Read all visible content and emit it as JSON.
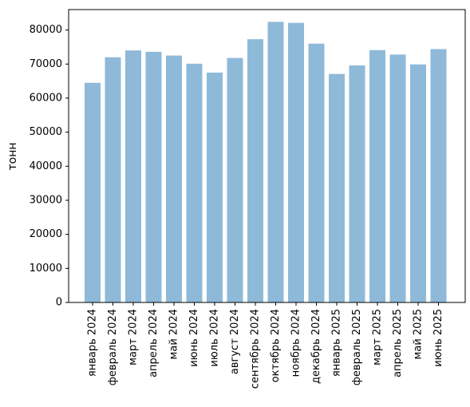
{
  "chart_data": {
    "type": "bar",
    "categories": [
      "январь 2024",
      "февраль 2024",
      "март 2024",
      "апрель 2024",
      "май 2024",
      "июнь 2024",
      "июль 2024",
      "август 2024",
      "сентябрь 2024",
      "октябрь 2024",
      "ноябрь 2024",
      "декабрь 2024",
      "январь 2025",
      "февраль 2025",
      "март 2025",
      "апрель 2025",
      "май 2025",
      "июнь 2025"
    ],
    "values": [
      64500,
      72000,
      74000,
      73600,
      72500,
      70100,
      67500,
      71800,
      77300,
      82400,
      82100,
      76000,
      67100,
      69600,
      74100,
      72800,
      69900,
      74400
    ],
    "ylabel": "тонн",
    "ylim": [
      0,
      86000
    ],
    "yticks": [
      0,
      10000,
      20000,
      30000,
      40000,
      50000,
      60000,
      70000,
      80000
    ],
    "bar_color": "#8fb9d9",
    "grid": false,
    "legend": "none"
  }
}
